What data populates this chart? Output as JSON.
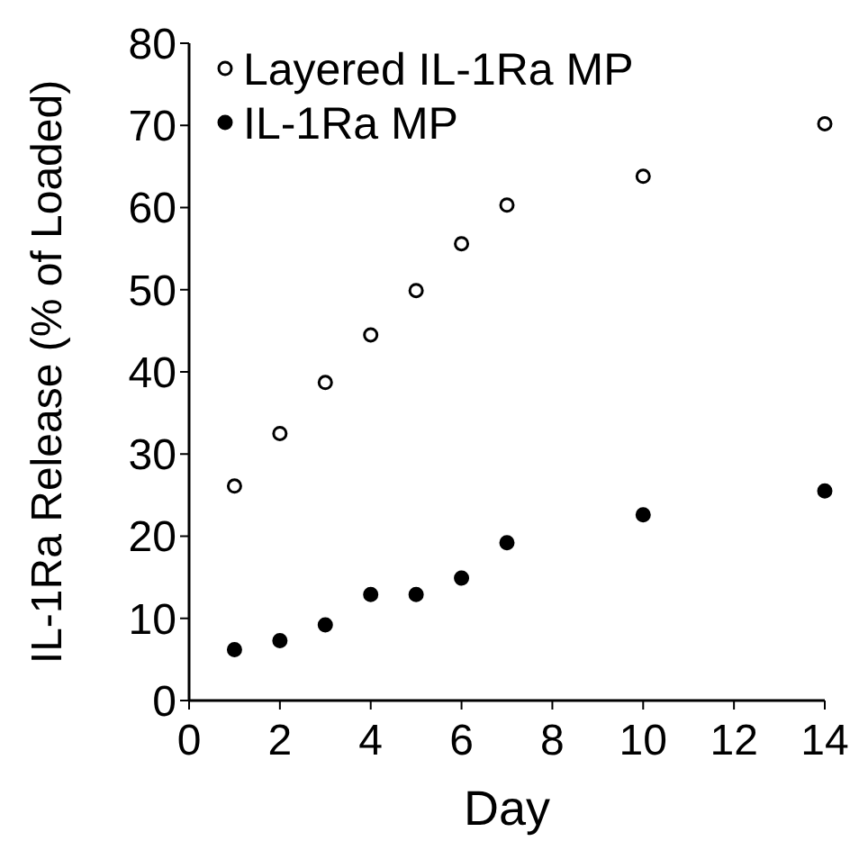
{
  "chart_data": {
    "type": "scatter",
    "xlabel": "Day",
    "ylabel": "IL-1Ra Release (% of Loaded)",
    "xlim": [
      0,
      14
    ],
    "xticks": [
      0,
      2,
      4,
      6,
      8,
      10,
      12,
      14
    ],
    "ylim": [
      0,
      80
    ],
    "yticks": [
      0,
      10,
      20,
      30,
      40,
      50,
      60,
      70,
      80
    ],
    "grid": false,
    "legend": "top left",
    "marker": "circle",
    "series": [
      {
        "name": "Layered IL-1Ra MP",
        "color": "#000000",
        "x": [
          1,
          2,
          3,
          4,
          5,
          6,
          7,
          10,
          14
        ],
        "values": [
          26.1,
          32.5,
          38.7,
          44.5,
          49.9,
          55.6,
          60.3,
          63.8,
          70.2
        ]
      },
      {
        "name": "IL-1Ra MP",
        "color": "#000000",
        "x": [
          1,
          2,
          3,
          4,
          5,
          6,
          7,
          10,
          14
        ],
        "values": [
          6.2,
          7.3,
          9.2,
          12.9,
          12.9,
          14.9,
          19.2,
          22.6,
          25.5
        ]
      }
    ]
  }
}
